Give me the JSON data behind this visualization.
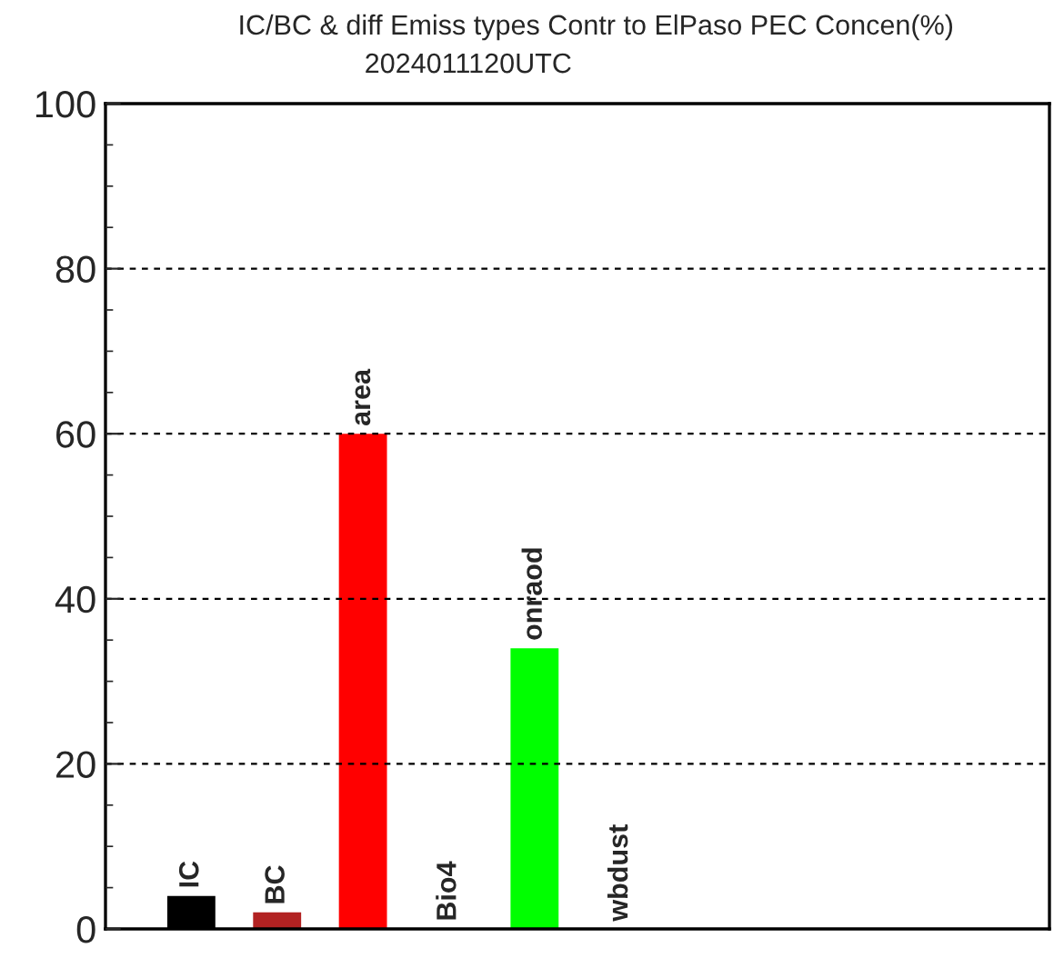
{
  "chart_data": {
    "type": "bar",
    "title": "IC/BC & diff Emiss types Contr to ElPaso PEC Concen(%)",
    "subtitle": "2024011120UTC",
    "categories": [
      "IC",
      "BC",
      "area",
      "Bio4",
      "onraod",
      "wbdust"
    ],
    "values": [
      4,
      2,
      60,
      0,
      34,
      0
    ],
    "colors": [
      "#000000",
      "#b22222",
      "#ff0000",
      "#ffffff",
      "#00ff00",
      "#ffffff"
    ],
    "ylim": [
      0,
      100
    ],
    "yticks": [
      0,
      20,
      40,
      60,
      80,
      100
    ],
    "grid": "y",
    "line_style": "dashed"
  }
}
